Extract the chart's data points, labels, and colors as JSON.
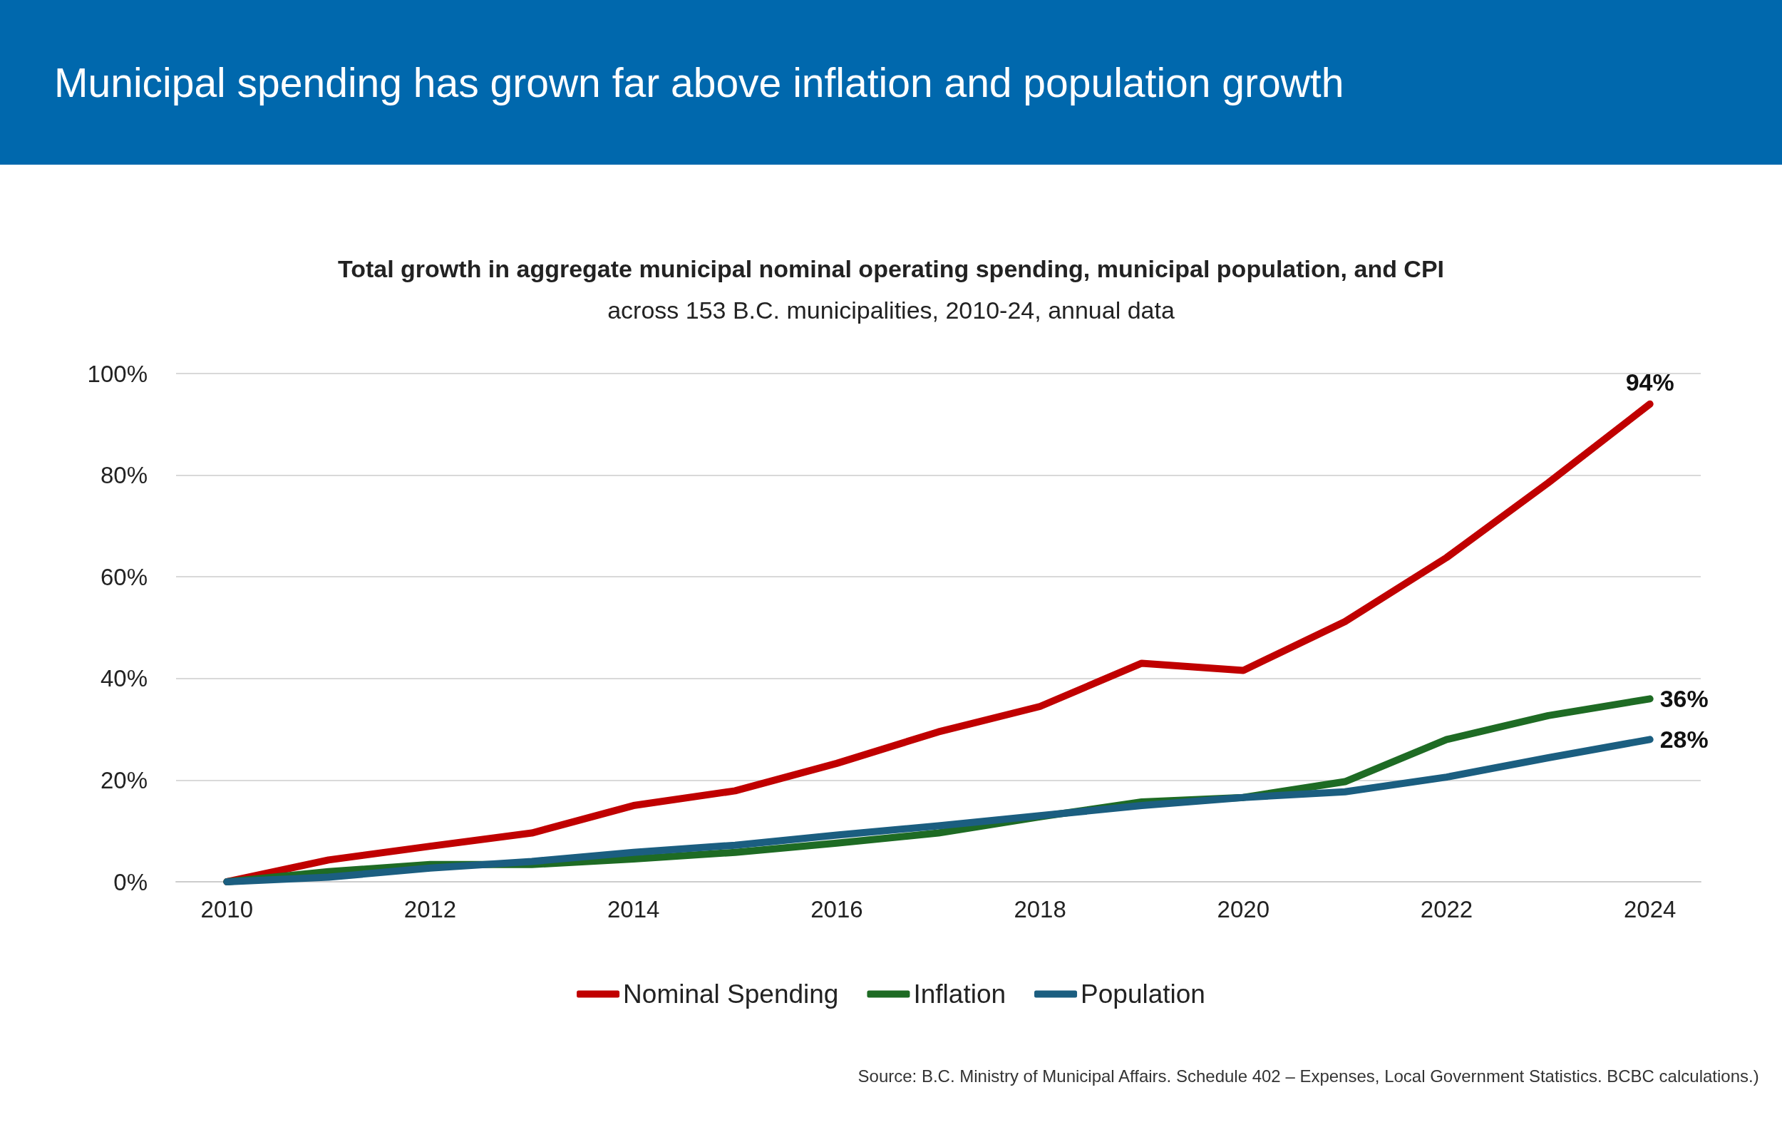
{
  "chart_data": {
    "type": "line",
    "title": "Municipal spending has grown far above inflation and population growth",
    "subtitle": "Total growth in aggregate municipal nominal operating spending, municipal population, and CPI",
    "annotations": [
      "across 153 B.C. municipalities, 2010-24, annual data",
      "Source: B.C. Ministry of Municipal Affairs. Schedule 402 – Expenses, Local Government Statistics. BCBC calculations.)"
    ],
    "x": [
      2010,
      2011,
      2012,
      2013,
      2014,
      2015,
      2016,
      2017,
      2018,
      2019,
      2020,
      2021,
      2022,
      2023,
      2024
    ],
    "xlim": [
      2009.5,
      2024.5
    ],
    "xticks": [
      2010,
      2012,
      2014,
      2016,
      2018,
      2020,
      2022,
      2024
    ],
    "ylim": [
      0,
      100
    ],
    "yticks": [
      {
        "value": 0,
        "label": "0%"
      },
      {
        "value": 20,
        "label": "20%"
      },
      {
        "value": 40,
        "label": "40%"
      },
      {
        "value": 60,
        "label": "60%"
      },
      {
        "value": 80,
        "label": "80%"
      },
      {
        "value": 100,
        "label": "100%"
      }
    ],
    "grid": "y",
    "legend": "bottom",
    "marker": "none",
    "line_style": "solid",
    "series": [
      {
        "name": "Nominal Spending",
        "color": "#c00000",
        "values": [
          0,
          4.3,
          7,
          9.6,
          15,
          17.9,
          23.3,
          29.5,
          34.5,
          43,
          41.6,
          51.2,
          63.8,
          78.5,
          94
        ],
        "value_labels": [
          null,
          null,
          null,
          null,
          null,
          null,
          null,
          null,
          null,
          null,
          null,
          null,
          null,
          null,
          "94%"
        ]
      },
      {
        "name": "Inflation",
        "color": "#1e6b24",
        "values": [
          0,
          2,
          3.4,
          3.4,
          4.5,
          5.8,
          7.6,
          9.6,
          12.8,
          15.7,
          16.6,
          19.7,
          28,
          32.7,
          36
        ],
        "value_labels": [
          null,
          null,
          null,
          null,
          null,
          null,
          null,
          null,
          null,
          null,
          null,
          null,
          null,
          null,
          "36%"
        ]
      },
      {
        "name": "Population",
        "color": "#1b5e80",
        "values": [
          0,
          0.9,
          2.7,
          4,
          5.8,
          7.2,
          9.2,
          11,
          13,
          15,
          16.6,
          17.7,
          20.6,
          24.4,
          28
        ],
        "value_labels": [
          null,
          null,
          null,
          null,
          null,
          null,
          null,
          null,
          null,
          null,
          null,
          null,
          null,
          null,
          "28%"
        ]
      }
    ]
  }
}
